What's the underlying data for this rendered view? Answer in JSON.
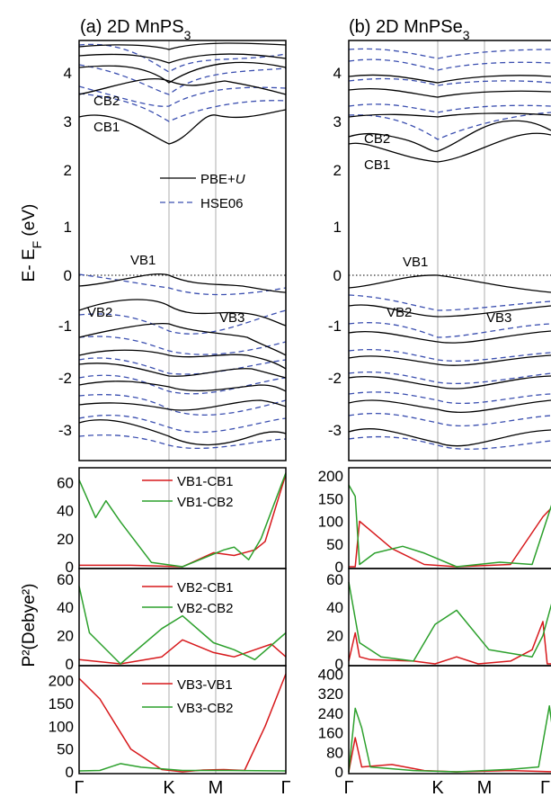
{
  "colors": {
    "pbe": "#000000",
    "hse": "#3b4fb0",
    "vb_cb1": "#d7191c",
    "vb_cb2": "#2ca02c",
    "guide": "#c8c8c8"
  },
  "band": {
    "ylabel": "E- E",
    "ylabel_sub": "F",
    "ylabel_unit": " (eV)",
    "yticks": [
      "4",
      "3",
      "2",
      "1",
      "0",
      "-1",
      "-2",
      "-3"
    ],
    "legend": {
      "pbe_main": "PBE+",
      "pbe_ital": "U",
      "hse": "HSE06"
    }
  },
  "kpath": [
    "Γ",
    "K",
    "M",
    "Γ"
  ],
  "p2_ylabel": "P²(Debye²)",
  "chart_data": [
    {
      "type": "line",
      "title": "(a) 2D MnPS",
      "title_sub": "3",
      "ylim": [
        -3.6,
        4.6
      ],
      "xticks": [
        "Γ",
        "K",
        "M",
        "Γ"
      ],
      "band_labels": [
        "CB2",
        "CB1",
        "VB1",
        "VB2",
        "VB3"
      ],
      "series": [
        {
          "name": "PBE+U",
          "x": [
            0,
            0.5,
            0.75,
            1
          ],
          "y": [
            2.95,
            2.5,
            2.95,
            3.0
          ]
        },
        {
          "name": "PBE+U",
          "x": [
            0,
            0.5,
            0.75,
            1
          ],
          "y": [
            3.3,
            3.8,
            3.4,
            3.2
          ]
        },
        {
          "name": "PBE+U",
          "x": [
            0,
            0.5,
            0.75,
            1
          ],
          "y": [
            -0.25,
            0.0,
            -0.25,
            -0.3
          ]
        },
        {
          "name": "PBE+U",
          "x": [
            0,
            0.5,
            0.75,
            1
          ],
          "y": [
            -0.85,
            -0.65,
            -0.95,
            -0.95
          ]
        },
        {
          "name": "HSE06",
          "x": [
            0,
            0.5,
            0.75,
            1
          ],
          "y": [
            4.0,
            3.35,
            3.9,
            3.9
          ]
        },
        {
          "name": "HSE06",
          "x": [
            0,
            0.5,
            0.75,
            1
          ],
          "y": [
            -0.25,
            -0.1,
            -0.35,
            -0.4
          ]
        }
      ]
    },
    {
      "type": "line",
      "title": "(b) 2D MnPSe",
      "title_sub": "3",
      "ylim": [
        -3.6,
        4.6
      ],
      "xticks": [
        "Γ",
        "K",
        "M",
        "Γ"
      ],
      "band_labels": [
        "CB2",
        "CB1",
        "VB1",
        "VB2",
        "VB3"
      ],
      "series": [
        {
          "name": "PBE+U",
          "x": [
            0,
            0.25,
            0.5,
            0.75,
            0.9,
            1
          ],
          "y": [
            2.1,
            2.3,
            1.85,
            2.3,
            2.45,
            2.2
          ]
        },
        {
          "name": "PBE+U",
          "x": [
            0,
            0.25,
            0.5,
            0.75,
            1
          ],
          "y": [
            -0.4,
            -0.3,
            0.0,
            -0.3,
            -0.4
          ]
        },
        {
          "name": "HSE06",
          "x": [
            0,
            0.25,
            0.5,
            0.75,
            1
          ],
          "y": [
            2.9,
            2.8,
            2.6,
            2.9,
            2.9
          ]
        }
      ]
    },
    {
      "type": "line",
      "panel": "a-p1",
      "ylim": [
        0,
        68
      ],
      "yticks": [
        0,
        20,
        40,
        60
      ],
      "series": [
        {
          "name": "VB1-CB1",
          "x": [
            0,
            0.25,
            0.5,
            0.65,
            0.75,
            0.85,
            0.9,
            1
          ],
          "y": [
            1,
            1,
            0,
            10,
            8,
            12,
            18,
            66
          ]
        },
        {
          "name": "VB1-CB2",
          "x": [
            0,
            0.08,
            0.13,
            0.2,
            0.35,
            0.5,
            0.7,
            0.75,
            0.82,
            0.88,
            1
          ],
          "y": [
            62,
            35,
            47,
            32,
            3,
            0,
            12,
            14,
            5,
            20,
            67
          ]
        }
      ]
    },
    {
      "type": "line",
      "panel": "a-p2",
      "ylim": [
        0,
        65
      ],
      "yticks": [
        0,
        20,
        40,
        60
      ],
      "series": [
        {
          "name": "VB2-CB1",
          "x": [
            0,
            0.2,
            0.4,
            0.5,
            0.65,
            0.75,
            0.85,
            0.93,
            1
          ],
          "y": [
            3,
            0,
            5,
            17,
            8,
            5,
            10,
            14,
            5
          ]
        },
        {
          "name": "VB2-CB2",
          "x": [
            0,
            0.05,
            0.2,
            0.4,
            0.5,
            0.65,
            0.75,
            0.85,
            1
          ],
          "y": [
            55,
            22,
            0,
            25,
            34,
            15,
            10,
            3,
            22
          ]
        }
      ]
    },
    {
      "type": "line",
      "panel": "a-p3",
      "ylim": [
        0,
        225
      ],
      "yticks": [
        0,
        50,
        100,
        150,
        200
      ],
      "series": [
        {
          "name": "VB3-VB1",
          "x": [
            0,
            0.1,
            0.25,
            0.4,
            0.5,
            0.6,
            0.7,
            0.8,
            0.9,
            1
          ],
          "y": [
            205,
            160,
            50,
            5,
            0,
            4,
            5,
            3,
            100,
            215
          ]
        },
        {
          "name": "VB3-CB2",
          "x": [
            0,
            0.1,
            0.2,
            0.3,
            0.5,
            0.7,
            1
          ],
          "y": [
            2,
            3,
            18,
            10,
            3,
            3,
            2
          ]
        }
      ]
    },
    {
      "type": "line",
      "panel": "b-p1",
      "ylim": [
        0,
        210
      ],
      "yticks": [
        0,
        50,
        100,
        150,
        200
      ],
      "series": [
        {
          "name": "VB1-CB1",
          "x": [
            0,
            0.03,
            0.05,
            0.1,
            0.2,
            0.35,
            0.5,
            0.75,
            0.9,
            0.95,
            0.97,
            1
          ],
          "y": [
            0,
            0,
            100,
            80,
            40,
            5,
            0,
            5,
            110,
            135,
            0,
            0
          ]
        },
        {
          "name": "VB1-CB2",
          "x": [
            0,
            0.03,
            0.05,
            0.12,
            0.25,
            0.35,
            0.5,
            0.7,
            0.85,
            0.95,
            1
          ],
          "y": [
            180,
            155,
            5,
            30,
            45,
            30,
            0,
            10,
            5,
            150,
            195
          ]
        }
      ]
    },
    {
      "type": "line",
      "panel": "b-p2",
      "ylim": [
        0,
        65
      ],
      "yticks": [
        0,
        20,
        40,
        60
      ],
      "series": [
        {
          "name": "VB2-CB1",
          "x": [
            0,
            0.03,
            0.05,
            0.1,
            0.3,
            0.4,
            0.5,
            0.6,
            0.75,
            0.85,
            0.9,
            0.92,
            1
          ],
          "y": [
            2,
            22,
            5,
            3,
            2,
            0,
            5,
            0,
            2,
            10,
            30,
            0,
            0
          ]
        },
        {
          "name": "VB2-CB2",
          "x": [
            0,
            0.05,
            0.15,
            0.3,
            0.4,
            0.5,
            0.65,
            0.85,
            0.9,
            0.95,
            1
          ],
          "y": [
            58,
            15,
            5,
            2,
            28,
            38,
            10,
            5,
            20,
            48,
            5
          ]
        }
      ]
    },
    {
      "type": "line",
      "panel": "b-p3",
      "ylim": [
        0,
        420
      ],
      "yticks": [
        0,
        80,
        160,
        240,
        320,
        400
      ],
      "series": [
        {
          "name": "VB3-VB1",
          "x": [
            0,
            0.03,
            0.06,
            0.2,
            0.35,
            0.5,
            0.75,
            0.95,
            1
          ],
          "y": [
            0,
            140,
            20,
            30,
            5,
            0,
            5,
            0,
            0
          ]
        },
        {
          "name": "VB3-CB2",
          "x": [
            0,
            0.03,
            0.06,
            0.1,
            0.3,
            0.5,
            0.75,
            0.88,
            0.93,
            0.97,
            1
          ],
          "y": [
            0,
            260,
            180,
            20,
            5,
            0,
            10,
            20,
            270,
            10,
            0
          ]
        }
      ]
    }
  ]
}
